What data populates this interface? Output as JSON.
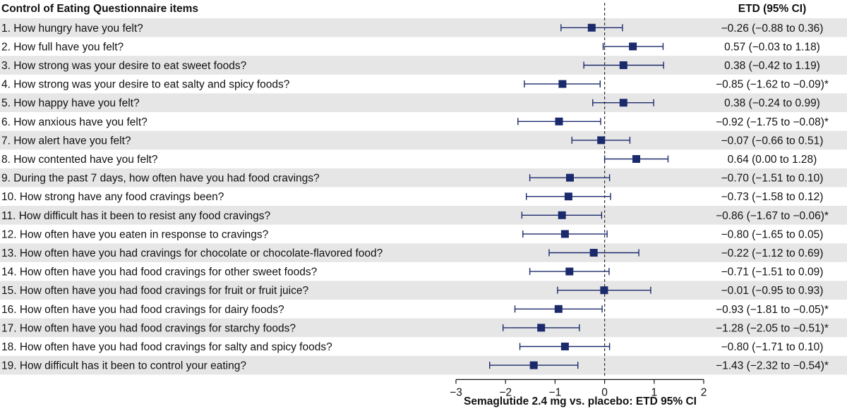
{
  "chart_data": {
    "type": "forest",
    "title": "Control of Eating Questionnaire items",
    "value_header": "ETD (95% CI)",
    "xlabel": "Semaglutide 2.4 mg vs. placebo: ETD 95% CI",
    "xlim": [
      -3,
      2
    ],
    "xticks": [
      "−3",
      "−2",
      "−1",
      "0",
      "1",
      "2"
    ],
    "xtick_values": [
      -3,
      -2,
      -1,
      0,
      1,
      2
    ],
    "reference_line": 0,
    "colors": {
      "marker": "#1b2a6b",
      "stripe": "#e6e6e6",
      "refline": "#333333"
    },
    "rows": [
      {
        "label": "1. How hungry have you felt?",
        "est": -0.26,
        "lo": -0.88,
        "hi": 0.36,
        "text": "−0.26 (−0.88 to 0.36)"
      },
      {
        "label": "2. How full have you felt?",
        "est": 0.57,
        "lo": -0.03,
        "hi": 1.18,
        "text": "0.57 (−0.03 to 1.18)"
      },
      {
        "label": "3. How strong was your desire to eat sweet foods?",
        "est": 0.38,
        "lo": -0.42,
        "hi": 1.19,
        "text": "0.38 (−0.42 to 1.19)"
      },
      {
        "label": "4. How strong was your desire to eat salty and spicy foods?",
        "est": -0.85,
        "lo": -1.62,
        "hi": -0.09,
        "text": "−0.85 (−1.62 to −0.09)*"
      },
      {
        "label": "5. How happy have you felt?",
        "est": 0.38,
        "lo": -0.24,
        "hi": 0.99,
        "text": "0.38 (−0.24 to 0.99)"
      },
      {
        "label": "6. How anxious have you felt?",
        "est": -0.92,
        "lo": -1.75,
        "hi": -0.08,
        "text": "−0.92 (−1.75 to −0.08)*"
      },
      {
        "label": "7. How alert have you felt?",
        "est": -0.07,
        "lo": -0.66,
        "hi": 0.51,
        "text": "−0.07 (−0.66 to 0.51)"
      },
      {
        "label": "8. How contented have you felt?",
        "est": 0.64,
        "lo": 0.0,
        "hi": 1.28,
        "text": "0.64 (0.00 to 1.28)"
      },
      {
        "label": "9. During the past 7 days, how often have you had food cravings?",
        "est": -0.7,
        "lo": -1.51,
        "hi": 0.1,
        "text": "−0.70 (−1.51 to 0.10)"
      },
      {
        "label": "10. How strong have any food cravings been?",
        "est": -0.73,
        "lo": -1.58,
        "hi": 0.12,
        "text": "−0.73 (−1.58 to 0.12)"
      },
      {
        "label": "11. How difficult has it been to resist any food cravings?",
        "est": -0.86,
        "lo": -1.67,
        "hi": -0.06,
        "text": "−0.86 (−1.67 to −0.06)*"
      },
      {
        "label": "12. How often have you eaten in response to cravings?",
        "est": -0.8,
        "lo": -1.65,
        "hi": 0.05,
        "text": "−0.80 (−1.65 to 0.05)"
      },
      {
        "label": "13. How often have you had cravings for chocolate or chocolate-flavored food?",
        "est": -0.22,
        "lo": -1.12,
        "hi": 0.69,
        "text": "−0.22 (−1.12 to 0.69)"
      },
      {
        "label": "14. How often have you had food cravings for other sweet foods?",
        "est": -0.71,
        "lo": -1.51,
        "hi": 0.09,
        "text": "−0.71 (−1.51 to 0.09)"
      },
      {
        "label": "15. How often have you had food cravings for fruit or fruit juice?",
        "est": -0.01,
        "lo": -0.95,
        "hi": 0.93,
        "text": "−0.01 (−0.95 to 0.93)"
      },
      {
        "label": "16. How often have you had food cravings for dairy foods?",
        "est": -0.93,
        "lo": -1.81,
        "hi": -0.05,
        "text": "−0.93 (−1.81 to −0.05)*"
      },
      {
        "label": "17. How often have you had food cravings for starchy foods?",
        "est": -1.28,
        "lo": -2.05,
        "hi": -0.51,
        "text": "−1.28 (−2.05 to −0.51)*"
      },
      {
        "label": "18. How often have you had food cravings for salty and spicy foods?",
        "est": -0.8,
        "lo": -1.71,
        "hi": 0.1,
        "text": "−0.80 (−1.71 to 0.10)"
      },
      {
        "label": "19. How difficult has it been to control your eating?",
        "est": -1.43,
        "lo": -2.32,
        "hi": -0.54,
        "text": "−1.43 (−2.32 to −0.54)*"
      }
    ]
  }
}
